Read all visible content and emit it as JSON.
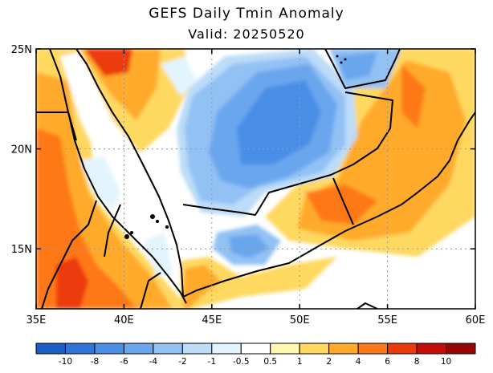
{
  "header": {
    "title": "GEFS Daily Tmin Anomaly",
    "subtitle": "Valid: 20250520"
  },
  "map": {
    "lon_range": [
      35,
      60
    ],
    "lat_range": [
      12,
      25
    ],
    "x_ticks": [
      {
        "v": 35,
        "label": "35E"
      },
      {
        "v": 40,
        "label": "40E"
      },
      {
        "v": 45,
        "label": "45E"
      },
      {
        "v": 50,
        "label": "50E"
      },
      {
        "v": 55,
        "label": "55E"
      },
      {
        "v": 60,
        "label": "60E"
      }
    ],
    "y_ticks": [
      {
        "v": 25,
        "label": "25N"
      },
      {
        "v": 20,
        "label": "20N"
      },
      {
        "v": 15,
        "label": "15N"
      }
    ]
  },
  "colorbar": {
    "labels": [
      "-10",
      "-8",
      "-6",
      "-4",
      "-2",
      "-1",
      "-0.5",
      "0.5",
      "1",
      "2",
      "4",
      "6",
      "8",
      "10"
    ],
    "colors": [
      "#1a5ec8",
      "#2f74d8",
      "#4a8ee6",
      "#6aa6ee",
      "#92c1f4",
      "#bcdcf8",
      "#e2f4fd",
      "#ffffff",
      "#fff6b0",
      "#ffd860",
      "#ffaa2a",
      "#ff7818",
      "#ec3a0c",
      "#c40c08",
      "#960404"
    ]
  }
}
